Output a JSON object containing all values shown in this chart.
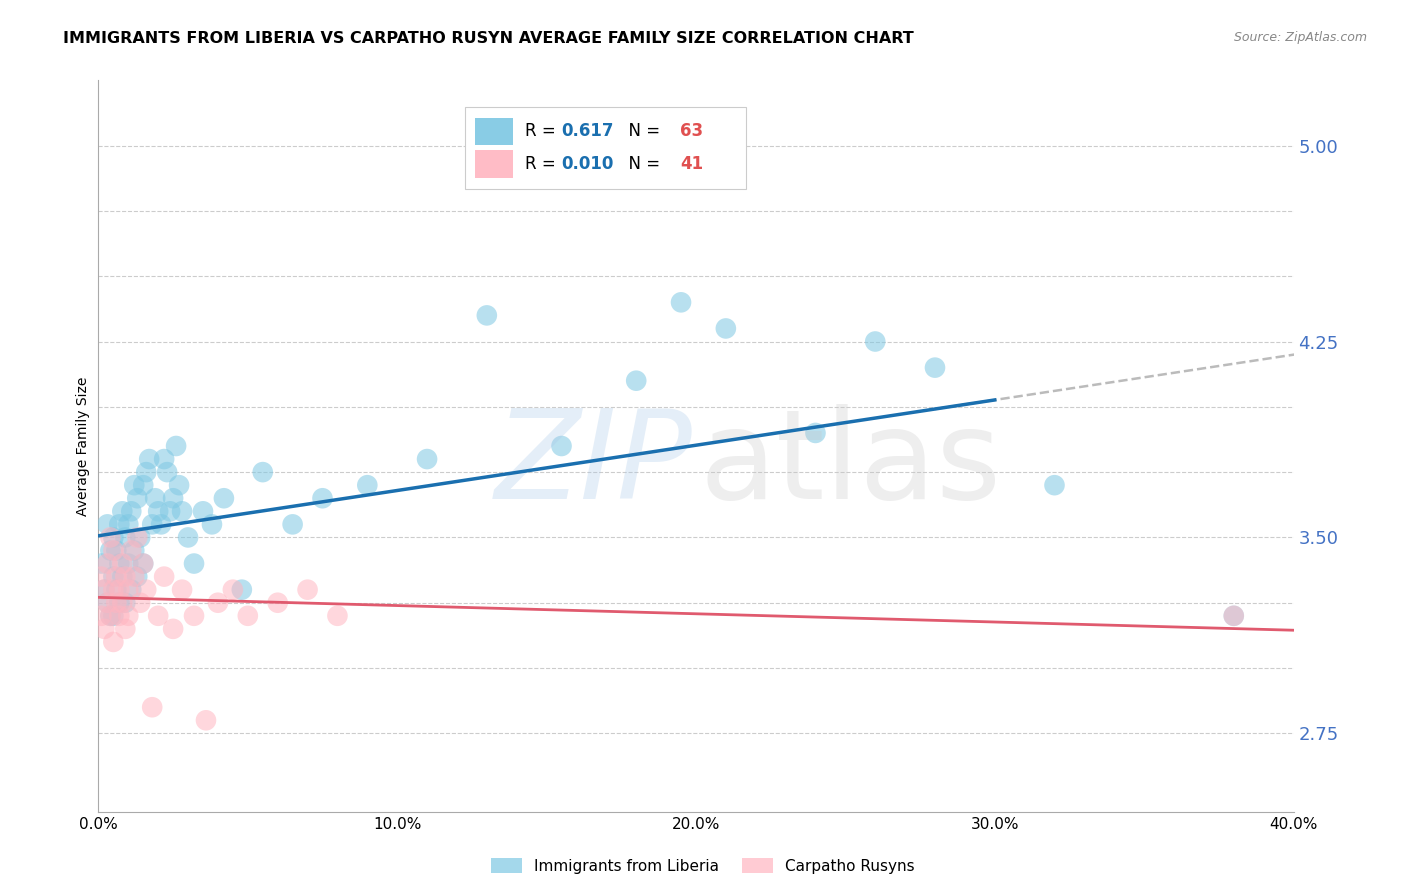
{
  "title": "IMMIGRANTS FROM LIBERIA VS CARPATHO RUSYN AVERAGE FAMILY SIZE CORRELATION CHART",
  "source": "Source: ZipAtlas.com",
  "ylabel": "Average Family Size",
  "xlim": [
    0.0,
    0.4
  ],
  "ylim": [
    2.45,
    5.25
  ],
  "xtick_positions": [
    0.0,
    0.1,
    0.2,
    0.3,
    0.4
  ],
  "xtick_labels": [
    "0.0%",
    "10.0%",
    "20.0%",
    "30.0%",
    "40.0%"
  ],
  "right_yticks": [
    2.75,
    3.5,
    4.25,
    5.0
  ],
  "right_ytick_labels": [
    "2.75",
    "3.50",
    "4.25",
    "5.00"
  ],
  "grid_yticks": [
    2.75,
    3.0,
    3.25,
    3.5,
    3.75,
    4.0,
    4.25,
    4.5,
    4.75,
    5.0
  ],
  "liberia_color": "#7ec8e3",
  "rusyn_color": "#ffb6c1",
  "liberia_line_color": "#1a6faf",
  "rusyn_line_color": "#e05a6e",
  "dashed_color": "#bbbbbb",
  "grid_color": "#cccccc",
  "right_tick_color": "#4472c4",
  "background_color": "#ffffff",
  "liberia_R": "0.617",
  "liberia_N": "63",
  "rusyn_R": "0.010",
  "rusyn_N": "41",
  "liberia_x": [
    0.001,
    0.002,
    0.003,
    0.003,
    0.004,
    0.004,
    0.005,
    0.005,
    0.005,
    0.006,
    0.006,
    0.007,
    0.007,
    0.007,
    0.008,
    0.008,
    0.009,
    0.009,
    0.01,
    0.01,
    0.011,
    0.011,
    0.012,
    0.012,
    0.013,
    0.013,
    0.014,
    0.015,
    0.015,
    0.016,
    0.017,
    0.018,
    0.019,
    0.02,
    0.021,
    0.022,
    0.023,
    0.024,
    0.025,
    0.026,
    0.027,
    0.028,
    0.03,
    0.032,
    0.035,
    0.038,
    0.042,
    0.048,
    0.055,
    0.065,
    0.075,
    0.09,
    0.11,
    0.13,
    0.155,
    0.18,
    0.21,
    0.24,
    0.28,
    0.32,
    0.26,
    0.195,
    0.38
  ],
  "liberia_y": [
    3.4,
    3.3,
    3.55,
    3.25,
    3.2,
    3.45,
    3.35,
    3.2,
    3.5,
    3.3,
    3.45,
    3.25,
    3.55,
    3.4,
    3.6,
    3.35,
    3.5,
    3.25,
    3.4,
    3.55,
    3.6,
    3.3,
    3.7,
    3.45,
    3.65,
    3.35,
    3.5,
    3.7,
    3.4,
    3.75,
    3.8,
    3.55,
    3.65,
    3.6,
    3.55,
    3.8,
    3.75,
    3.6,
    3.65,
    3.85,
    3.7,
    3.6,
    3.5,
    3.4,
    3.6,
    3.55,
    3.65,
    3.3,
    3.75,
    3.55,
    3.65,
    3.7,
    3.8,
    4.35,
    3.85,
    4.1,
    4.3,
    3.9,
    4.15,
    3.7,
    4.25,
    4.4,
    3.2
  ],
  "rusyn_x": [
    0.001,
    0.001,
    0.002,
    0.002,
    0.003,
    0.003,
    0.004,
    0.004,
    0.005,
    0.005,
    0.005,
    0.006,
    0.006,
    0.007,
    0.007,
    0.008,
    0.008,
    0.009,
    0.009,
    0.01,
    0.01,
    0.011,
    0.012,
    0.013,
    0.014,
    0.015,
    0.016,
    0.018,
    0.02,
    0.022,
    0.025,
    0.028,
    0.032,
    0.036,
    0.04,
    0.045,
    0.05,
    0.06,
    0.07,
    0.08,
    0.38
  ],
  "rusyn_y": [
    3.35,
    3.2,
    3.3,
    3.15,
    3.4,
    3.25,
    3.2,
    3.5,
    3.3,
    3.1,
    3.45,
    3.25,
    3.35,
    3.2,
    3.3,
    3.4,
    3.25,
    3.15,
    3.35,
    3.3,
    3.2,
    3.45,
    3.35,
    3.5,
    3.25,
    3.4,
    3.3,
    2.85,
    3.2,
    3.35,
    3.15,
    3.3,
    3.2,
    2.8,
    3.25,
    3.3,
    3.2,
    3.25,
    3.3,
    3.2,
    3.2
  ],
  "title_fontsize": 11.5,
  "axis_label_fontsize": 10,
  "tick_fontsize": 11,
  "watermark_fontsize": 90
}
